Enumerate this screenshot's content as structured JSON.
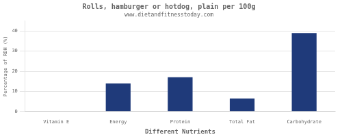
{
  "chart_data": {
    "type": "bar",
    "title": "Rolls, hamburger or hotdog, plain per 100g",
    "subtitle": "www.dietandfitnesstoday.com",
    "xlabel": "Different Nutrients",
    "ylabel": "Percentage of RDH (%)",
    "categories": [
      "Vitamin E",
      "Energy",
      "Protein",
      "Total Fat",
      "Carbohydrate"
    ],
    "values": [
      0,
      14,
      17,
      6.5,
      39
    ],
    "color": "#1f3a7a",
    "ylim": [
      0,
      45
    ],
    "yticks": [
      0,
      10,
      20,
      30,
      40
    ],
    "grid": true
  }
}
